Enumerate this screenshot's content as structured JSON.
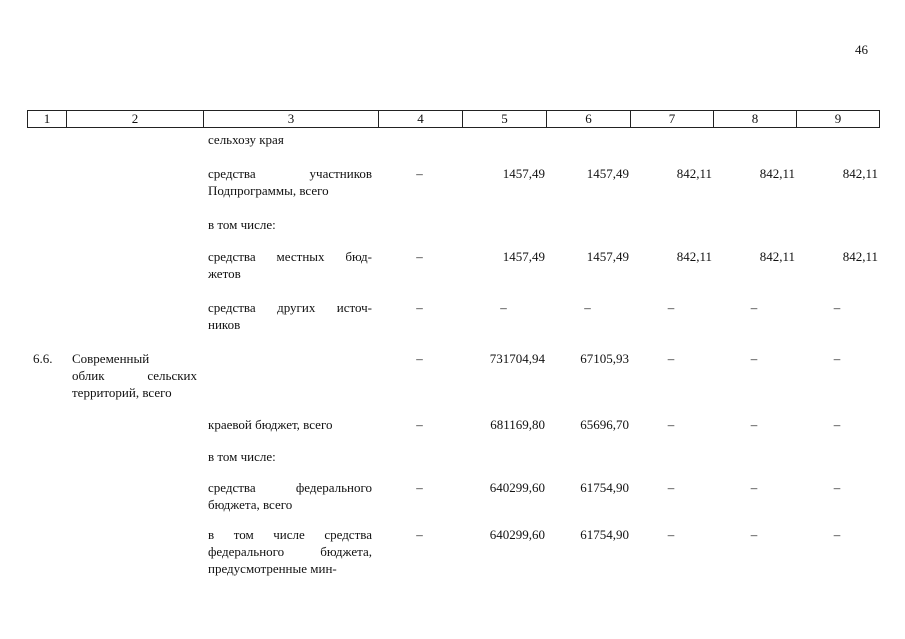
{
  "page_number": "46",
  "table": {
    "header": [
      "1",
      "2",
      "3",
      "4",
      "5",
      "6",
      "7",
      "8",
      "9"
    ],
    "rows": [
      [
        null,
        null,
        [
          "сельхозу края"
        ],
        null,
        null,
        null,
        null,
        null,
        null
      ],
      [
        null,
        null,
        [
          "средства участников",
          "Подпрограммы, всего"
        ],
        "–",
        "1457,49",
        "1457,49",
        "842,11",
        "842,11",
        "842,11"
      ],
      [
        null,
        null,
        [
          "в том числе:"
        ],
        null,
        null,
        null,
        null,
        null,
        null
      ],
      [
        null,
        null,
        [
          "средства местных бюд-",
          "жетов"
        ],
        "–",
        "1457,49",
        "1457,49",
        "842,11",
        "842,11",
        "842,11"
      ],
      [
        null,
        null,
        [
          "средства других источ-",
          "ников"
        ],
        "–",
        "–",
        "–",
        "–",
        "–",
        "–"
      ],
      [
        "6.6.",
        [
          "Современный",
          "облик сельских",
          "территорий, всего"
        ],
        null,
        "–",
        "731704,94",
        "67105,93",
        "–",
        "–",
        "–"
      ],
      [
        null,
        null,
        [
          "краевой бюджет, всего"
        ],
        "–",
        "681169,80",
        "65696,70",
        "–",
        "–",
        "–"
      ],
      [
        null,
        null,
        [
          "в том числе:"
        ],
        null,
        null,
        null,
        null,
        null,
        null
      ],
      [
        null,
        null,
        [
          "средства федерального",
          "бюджета, всего"
        ],
        "–",
        "640299,60",
        "61754,90",
        "–",
        "–",
        "–"
      ],
      [
        null,
        null,
        [
          "в том числе средства",
          "федерального бюджета,",
          "предусмотренные мин-"
        ],
        "–",
        "640299,60",
        "61754,90",
        "–",
        "–",
        "–"
      ]
    ]
  }
}
